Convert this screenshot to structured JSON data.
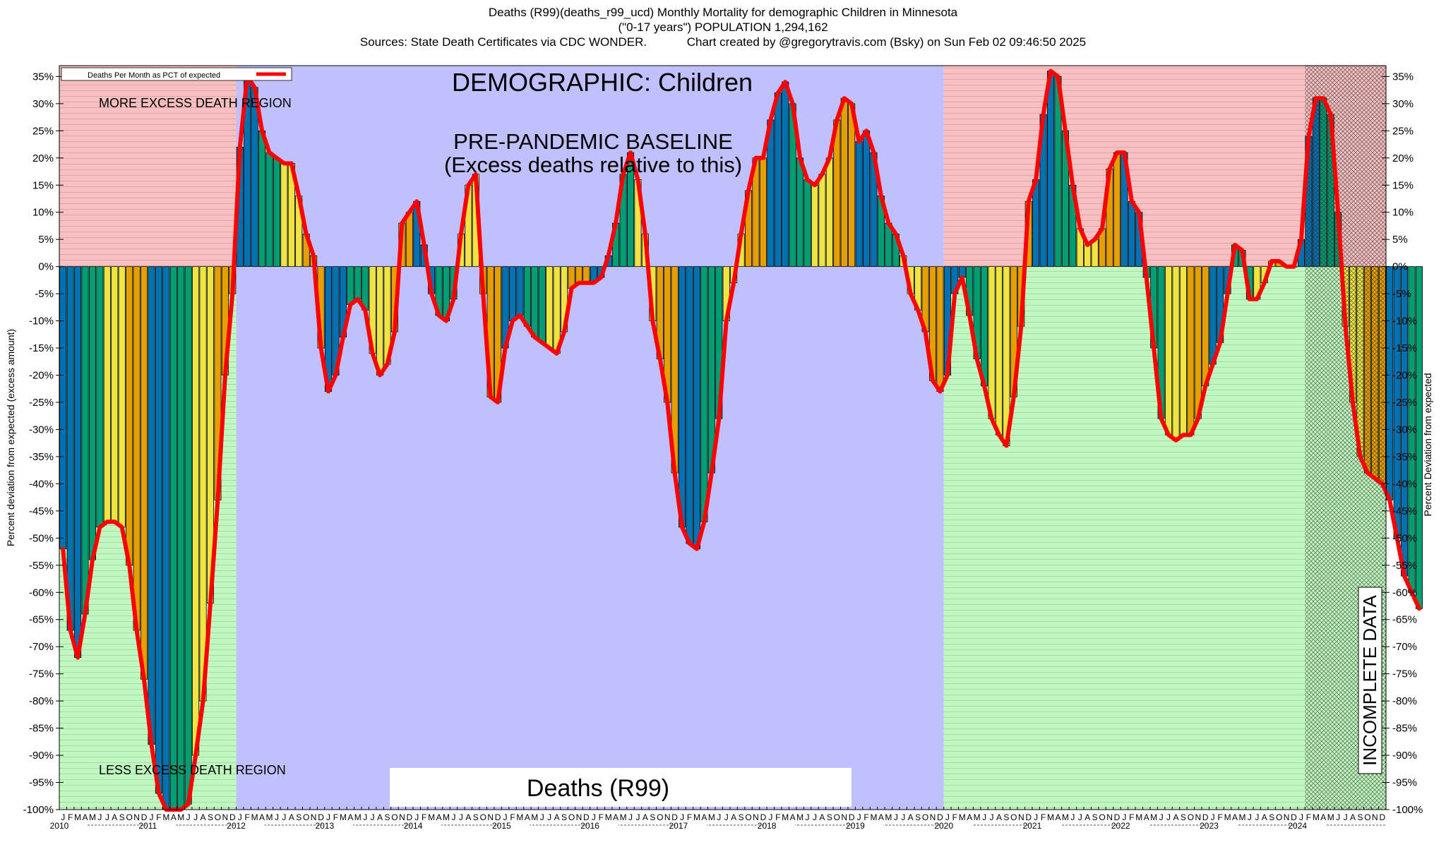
{
  "header": {
    "line1": "Deaths (R99)(deaths_r99_ucd) Monthly Mortality for demographic Children in Minnesota",
    "line2": "(\"0-17 years\") POPULATION 1,294,162",
    "line3": "Sources: State Death Certificates via CDC WONDER.            Chart created by @gregorytravis.com (Bsky) on Sun Feb 02 09:46:50 2025"
  },
  "chart_data": {
    "type": "bar",
    "title": "DEMOGRAPHIC: Children",
    "subtitle_line1": "PRE-PANDEMIC BASELINE",
    "subtitle_line2": "(Excess deaths relative to this)",
    "footer_label": "Deaths (R99)",
    "ylabel_left": "Percent deviation from expected (excess amount)",
    "ylabel_right": "Percent Deviation from expected",
    "ylim": [
      -100,
      37
    ],
    "ytick_step": 5,
    "yticks": [
      35,
      30,
      25,
      20,
      15,
      10,
      5,
      0,
      -5,
      -10,
      -15,
      -20,
      -25,
      -30,
      -35,
      -40,
      -45,
      -50,
      -55,
      -60,
      -65,
      -70,
      -75,
      -80,
      -85,
      -90,
      -95,
      -100
    ],
    "ytick_suffix": "%",
    "region_labels": {
      "more": "MORE EXCESS DEATH REGION",
      "less": "LESS EXCESS DEATH REGION",
      "incomplete": "INCOMPLETE DATA"
    },
    "legend": {
      "entry": "Deaths Per Month as PCT of expected",
      "position": "top-left"
    },
    "start": "2010-01",
    "month_letters": [
      "J",
      "F",
      "M",
      "A",
      "M",
      "J",
      "J",
      "A",
      "S",
      "O",
      "N",
      "D"
    ],
    "years": [
      "2010",
      "2011",
      "2012",
      "2013",
      "2014",
      "2015",
      "2016",
      "2017",
      "2018",
      "2019",
      "2020",
      "2021",
      "2022",
      "2023",
      "2024"
    ],
    "values": [
      -52,
      -67,
      -72,
      -64,
      -54,
      -48,
      -47,
      -47,
      -48,
      -55,
      -67,
      -76,
      -88,
      -97,
      -100,
      -100,
      -100,
      -99,
      -90,
      -80,
      -62,
      -43,
      -20,
      -5,
      22,
      35,
      33,
      25,
      21,
      20,
      19,
      19,
      13,
      6,
      2,
      -15,
      -23,
      -20,
      -13,
      -7,
      -6,
      -8,
      -16,
      -20,
      -18,
      -12,
      8,
      10,
      12,
      4,
      -5,
      -9,
      -10,
      -6,
      6,
      15,
      17,
      -5,
      -24,
      -25,
      -15,
      -10,
      -9,
      -11,
      -13,
      -14,
      -15,
      -16,
      -12,
      -4,
      -3,
      -3,
      -3,
      -2,
      2,
      8,
      17,
      21,
      16,
      6,
      -10,
      -17,
      -25,
      -38,
      -48,
      -51,
      -52,
      -47,
      -38,
      -28,
      -10,
      -3,
      6,
      14,
      20,
      20,
      27,
      32,
      34,
      30,
      20,
      16,
      15,
      17,
      20,
      27,
      31,
      30,
      23,
      25,
      21,
      13,
      8,
      6,
      2,
      -5,
      -8,
      -12,
      -21,
      -23,
      -20,
      -5,
      -2,
      -9,
      -17,
      -22,
      -28,
      -31,
      -33,
      -24,
      -11,
      12,
      16,
      28,
      36,
      35,
      25,
      15,
      7,
      4,
      5,
      7,
      18,
      21,
      21,
      12,
      10,
      -2,
      -15,
      -28,
      -31,
      -32,
      -31,
      -31,
      -28,
      -22,
      -18,
      -14,
      -5,
      4,
      3,
      -6,
      -6,
      -3,
      1,
      1,
      0,
      0,
      5,
      24,
      31,
      31,
      28,
      10,
      -11,
      -25,
      -35,
      -38,
      -39,
      -40,
      -43,
      -50,
      -57,
      -60,
      -63
    ],
    "series_line_color": "#ff0000",
    "bar_colors": [
      "#0072b2",
      "#009e73",
      "#f0e442",
      "#e69f00"
    ],
    "background_colors": {
      "more_excess": "#f8c0c0",
      "less_excess": "#c0f8c0",
      "baseline": "#c0c0ff",
      "incomplete": "#7a8a7a"
    },
    "baseline_years": [
      "2012",
      "2013",
      "2014",
      "2015",
      "2016",
      "2017",
      "2018",
      "2019"
    ],
    "incomplete_from": "2024-02"
  }
}
